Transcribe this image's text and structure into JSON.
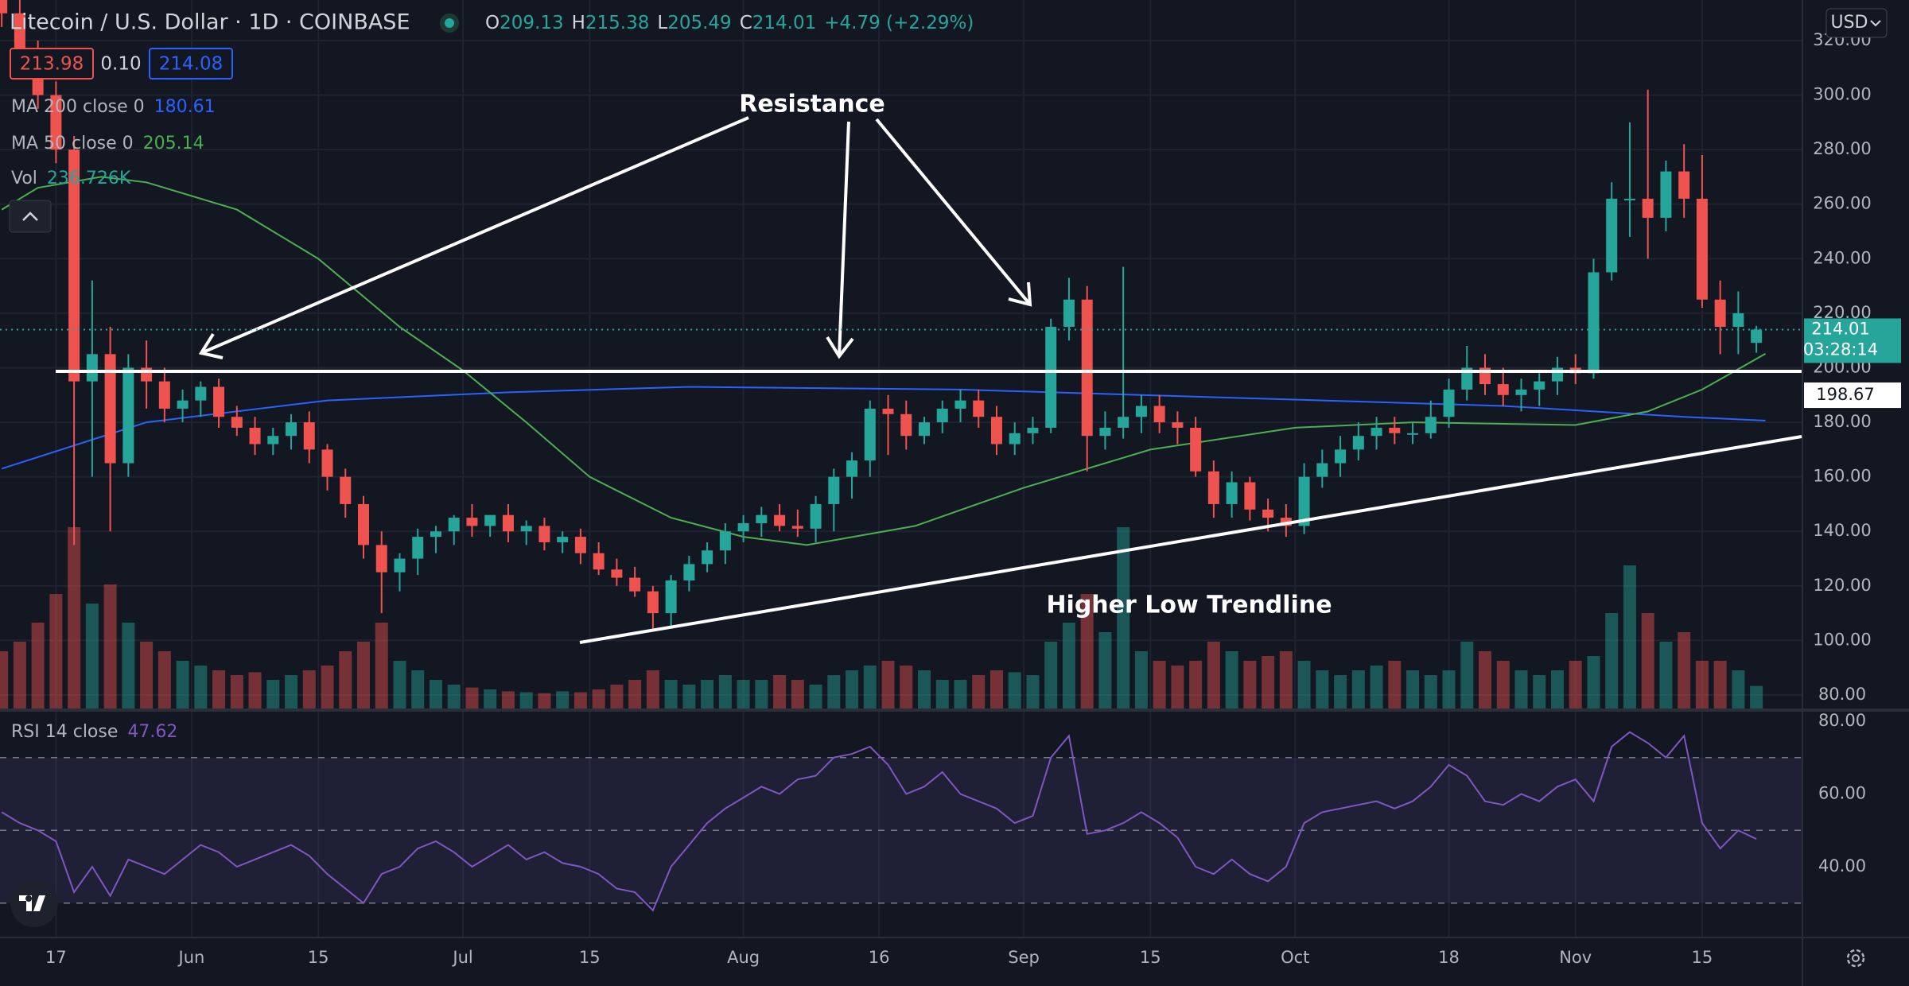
{
  "header": {
    "title": "Litecoin / U.S. Dollar · 1D · COINBASE",
    "ohlc_labels": [
      "O",
      "H",
      "L",
      "C"
    ],
    "change": "+4.79 (+2.29%)",
    "bid": "213.98",
    "spread": "0.10",
    "ask": "214.08",
    "currency": "USD"
  },
  "chart_data": [
    {
      "type": "candlestick",
      "x": [
        -6,
        -4,
        -2,
        0,
        2,
        4,
        6,
        8,
        10,
        12,
        14,
        16,
        18,
        20,
        22,
        24,
        26,
        28,
        30,
        32,
        34,
        36,
        38,
        40,
        42,
        44,
        46,
        48,
        50,
        52,
        54,
        56,
        58,
        60,
        62,
        64,
        66,
        68,
        70,
        72,
        74,
        76,
        78,
        80,
        82,
        84,
        86,
        88,
        90,
        92,
        94,
        96,
        98,
        100,
        102,
        104,
        106,
        108,
        110,
        112,
        114,
        116,
        118,
        120,
        122,
        124,
        126,
        128,
        130,
        132,
        134,
        136,
        138,
        140,
        142,
        144,
        146,
        148,
        150,
        152,
        154,
        156,
        158,
        160,
        162,
        164,
        166,
        168,
        170,
        172,
        174,
        176,
        178,
        180,
        182,
        184,
        186,
        188
      ],
      "open": [
        340,
        330,
        315,
        300,
        280,
        195,
        205,
        165,
        200,
        195,
        185,
        188,
        193,
        182,
        178,
        172,
        175,
        180,
        170,
        160,
        150,
        135,
        125,
        130,
        138,
        140,
        145,
        142,
        146,
        140,
        142,
        136,
        138,
        132,
        126,
        123,
        118,
        110,
        122,
        128,
        133,
        140,
        143,
        146,
        142,
        141,
        150,
        160,
        166,
        185,
        183,
        175,
        180,
        185,
        188,
        182,
        172,
        176,
        178,
        215,
        225,
        175,
        178,
        182,
        186,
        180,
        178,
        162,
        150,
        158,
        148,
        145,
        142,
        160,
        165,
        170,
        175,
        178,
        176,
        176,
        182,
        192,
        200,
        194,
        190,
        192,
        195,
        200,
        198,
        235,
        262,
        262,
        255,
        272,
        262,
        225,
        215,
        209.13
      ],
      "high": [
        345,
        335,
        320,
        305,
        285,
        232,
        215,
        205,
        210,
        200,
        192,
        195,
        196,
        186,
        182,
        178,
        183,
        184,
        172,
        163,
        153,
        140,
        132,
        141,
        142,
        146,
        150,
        146,
        150,
        144,
        145,
        140,
        141,
        136,
        130,
        127,
        120,
        124,
        131,
        136,
        143,
        146,
        149,
        150,
        148,
        153,
        163,
        169,
        188,
        190,
        188,
        182,
        188,
        192,
        192,
        186,
        180,
        182,
        218,
        233,
        230,
        184,
        237,
        190,
        190,
        184,
        182,
        166,
        162,
        160,
        152,
        150,
        165,
        170,
        175,
        180,
        182,
        182,
        180,
        188,
        196,
        208,
        205,
        200,
        196,
        198,
        204,
        205,
        240,
        268,
        290,
        302,
        276,
        282,
        278,
        232,
        228,
        215.38
      ],
      "low": [
        325,
        310,
        295,
        275,
        135,
        160,
        140,
        160,
        185,
        180,
        180,
        182,
        178,
        175,
        168,
        168,
        170,
        165,
        155,
        145,
        130,
        110,
        118,
        124,
        132,
        135,
        138,
        138,
        136,
        135,
        133,
        132,
        128,
        124,
        120,
        116,
        104,
        105,
        118,
        125,
        128,
        136,
        138,
        140,
        138,
        136,
        140,
        152,
        160,
        168,
        170,
        172,
        176,
        180,
        178,
        168,
        168,
        172,
        176,
        210,
        162,
        170,
        174,
        176,
        176,
        172,
        160,
        145,
        145,
        144,
        140,
        138,
        139,
        156,
        160,
        166,
        170,
        172,
        172,
        174,
        178,
        188,
        190,
        186,
        184,
        186,
        190,
        194,
        196,
        232,
        248,
        240,
        250,
        255,
        222,
        205,
        205,
        205.49
      ],
      "close": [
        330,
        315,
        300,
        280,
        195,
        205,
        165,
        200,
        195,
        185,
        188,
        193,
        182,
        178,
        172,
        175,
        180,
        170,
        160,
        150,
        135,
        125,
        130,
        138,
        140,
        145,
        142,
        146,
        140,
        142,
        136,
        138,
        132,
        126,
        123,
        118,
        110,
        122,
        128,
        133,
        140,
        143,
        146,
        142,
        141,
        150,
        160,
        166,
        185,
        183,
        175,
        180,
        185,
        188,
        182,
        172,
        176,
        178,
        215,
        225,
        175,
        178,
        182,
        186,
        180,
        178,
        162,
        150,
        158,
        148,
        145,
        142,
        160,
        165,
        170,
        175,
        178,
        176,
        176,
        182,
        192,
        200,
        194,
        190,
        192,
        195,
        200,
        198,
        235,
        262,
        262,
        255,
        272,
        262,
        225,
        215,
        220,
        214.01
      ],
      "colors": {
        "up": "#26a69a",
        "down": "#ef5350"
      },
      "volume": {
        "name": "Vol",
        "legend_value": "236.726K",
        "ylim": [
          0,
          2500
        ],
        "values": [
          600,
          700,
          900,
          1200,
          1900,
          1100,
          1300,
          900,
          700,
          600,
          500,
          450,
          400,
          350,
          380,
          300,
          350,
          400,
          450,
          600,
          700,
          900,
          500,
          400,
          300,
          250,
          220,
          200,
          180,
          170,
          160,
          180,
          170,
          200,
          250,
          300,
          400,
          300,
          250,
          300,
          350,
          300,
          300,
          350,
          300,
          250,
          350,
          400,
          450,
          500,
          450,
          400,
          300,
          300,
          350,
          400,
          380,
          350,
          700,
          900,
          1200,
          800,
          1900,
          600,
          500,
          450,
          500,
          700,
          600,
          500,
          550,
          600,
          500,
          400,
          350,
          400,
          450,
          500,
          400,
          350,
          400,
          700,
          600,
          500,
          400,
          350,
          400,
          500,
          550,
          1000,
          1500,
          1000,
          700,
          800,
          500,
          500,
          400,
          236.726
        ]
      },
      "series": [
        {
          "name": "MA 200 close 0",
          "color": "#2962ff",
          "x": [
            -6,
            10,
            30,
            50,
            70,
            100,
            120,
            140,
            160,
            180,
            189
          ],
          "values": [
            163,
            180,
            188,
            191,
            193,
            192,
            190,
            188,
            186,
            182,
            180.61
          ]
        },
        {
          "name": "MA 50 close 0",
          "color": "#4caf50",
          "x": [
            -6,
            -2,
            5,
            10,
            20,
            29,
            38,
            45,
            52,
            59,
            68,
            76,
            83,
            95,
            107,
            121,
            137,
            150,
            168,
            176,
            182,
            189
          ],
          "values": [
            258,
            266,
            270,
            268,
            258,
            240,
            215,
            199,
            180,
            160,
            145,
            138,
            135,
            142,
            156,
            170,
            178,
            180,
            179,
            184,
            192,
            205.14
          ]
        }
      ],
      "xlim": [
        -6.19,
        193
      ],
      "xticks": [
        {
          "value": 0,
          "label": "17"
        },
        {
          "value": 15,
          "label": "Jun"
        },
        {
          "value": 29,
          "label": "15"
        },
        {
          "value": 45,
          "label": "Jul"
        },
        {
          "value": 59,
          "label": "15"
        },
        {
          "value": 76,
          "label": "Aug"
        },
        {
          "value": 91,
          "label": "16"
        },
        {
          "value": 107,
          "label": "Sep"
        },
        {
          "value": 121,
          "label": "15"
        },
        {
          "value": 137,
          "label": "Oct"
        },
        {
          "value": 154,
          "label": "18"
        },
        {
          "value": 168,
          "label": "Nov"
        },
        {
          "value": 182,
          "label": "15"
        }
      ],
      "ylim": [
        75.04,
        334.87
      ],
      "yticks": [
        {
          "value": 80,
          "label": "80.00"
        },
        {
          "value": 100,
          "label": "100.00"
        },
        {
          "value": 120,
          "label": "120.00"
        },
        {
          "value": 140,
          "label": "140.00"
        },
        {
          "value": 160,
          "label": "160.00"
        },
        {
          "value": 180,
          "label": "180.00"
        },
        {
          "value": 200,
          "label": "200.00"
        },
        {
          "value": 220,
          "label": "220.00"
        },
        {
          "value": 240,
          "label": "240.00"
        },
        {
          "value": 260,
          "label": "260.00"
        },
        {
          "value": 280,
          "label": "280.00"
        },
        {
          "value": 300,
          "label": "300.00"
        },
        {
          "value": 320,
          "label": "320.00"
        }
      ],
      "grid": true,
      "resistance": 198.67,
      "countdown": "03:28:14",
      "annotations": {
        "resistance_label": "Resistance",
        "trendline_label": "Higher Low Trendline"
      }
    },
    {
      "type": "line",
      "name": "RSI 14 close",
      "color": "#7e57c2",
      "x": [
        -6,
        -4,
        -2,
        0,
        2,
        4,
        6,
        8,
        10,
        12,
        14,
        16,
        18,
        20,
        22,
        24,
        26,
        28,
        30,
        32,
        34,
        36,
        38,
        40,
        42,
        44,
        46,
        48,
        50,
        52,
        54,
        56,
        58,
        60,
        62,
        64,
        66,
        68,
        70,
        72,
        74,
        76,
        78,
        80,
        82,
        84,
        86,
        88,
        90,
        92,
        94,
        96,
        98,
        100,
        102,
        104,
        106,
        108,
        110,
        112,
        114,
        116,
        118,
        120,
        122,
        124,
        126,
        128,
        130,
        132,
        134,
        136,
        138,
        140,
        142,
        144,
        146,
        148,
        150,
        152,
        154,
        156,
        158,
        160,
        162,
        164,
        166,
        168,
        170,
        172,
        174,
        176,
        178,
        180,
        182,
        184,
        186,
        188
      ],
      "values": [
        55,
        52,
        50,
        47,
        33,
        40,
        32,
        42,
        40,
        38,
        42,
        46,
        44,
        40,
        42,
        44,
        46,
        43,
        38,
        34,
        30,
        38,
        40,
        45,
        47,
        44,
        40,
        43,
        46,
        42,
        44,
        41,
        40,
        38,
        34,
        33,
        28,
        40,
        46,
        52,
        56,
        59,
        62,
        60,
        64,
        65,
        70,
        71,
        73,
        68,
        60,
        62,
        66,
        60,
        58,
        56,
        52,
        54,
        70,
        76,
        49,
        50,
        52,
        55,
        52,
        48,
        40,
        38,
        42,
        38,
        36,
        40,
        52,
        55,
        56,
        57,
        58,
        56,
        58,
        62,
        68,
        65,
        58,
        57,
        60,
        58,
        62,
        64,
        58,
        73,
        77,
        74,
        70,
        76,
        52,
        45,
        50,
        47.62
      ],
      "ylim": [
        20.77,
        82.62
      ],
      "yticks": [
        {
          "value": 40,
          "label": "40.00"
        },
        {
          "value": 60,
          "label": "60.00"
        },
        {
          "value": 80,
          "label": "80.00"
        }
      ],
      "levels": [
        30,
        50,
        70
      ]
    }
  ]
}
